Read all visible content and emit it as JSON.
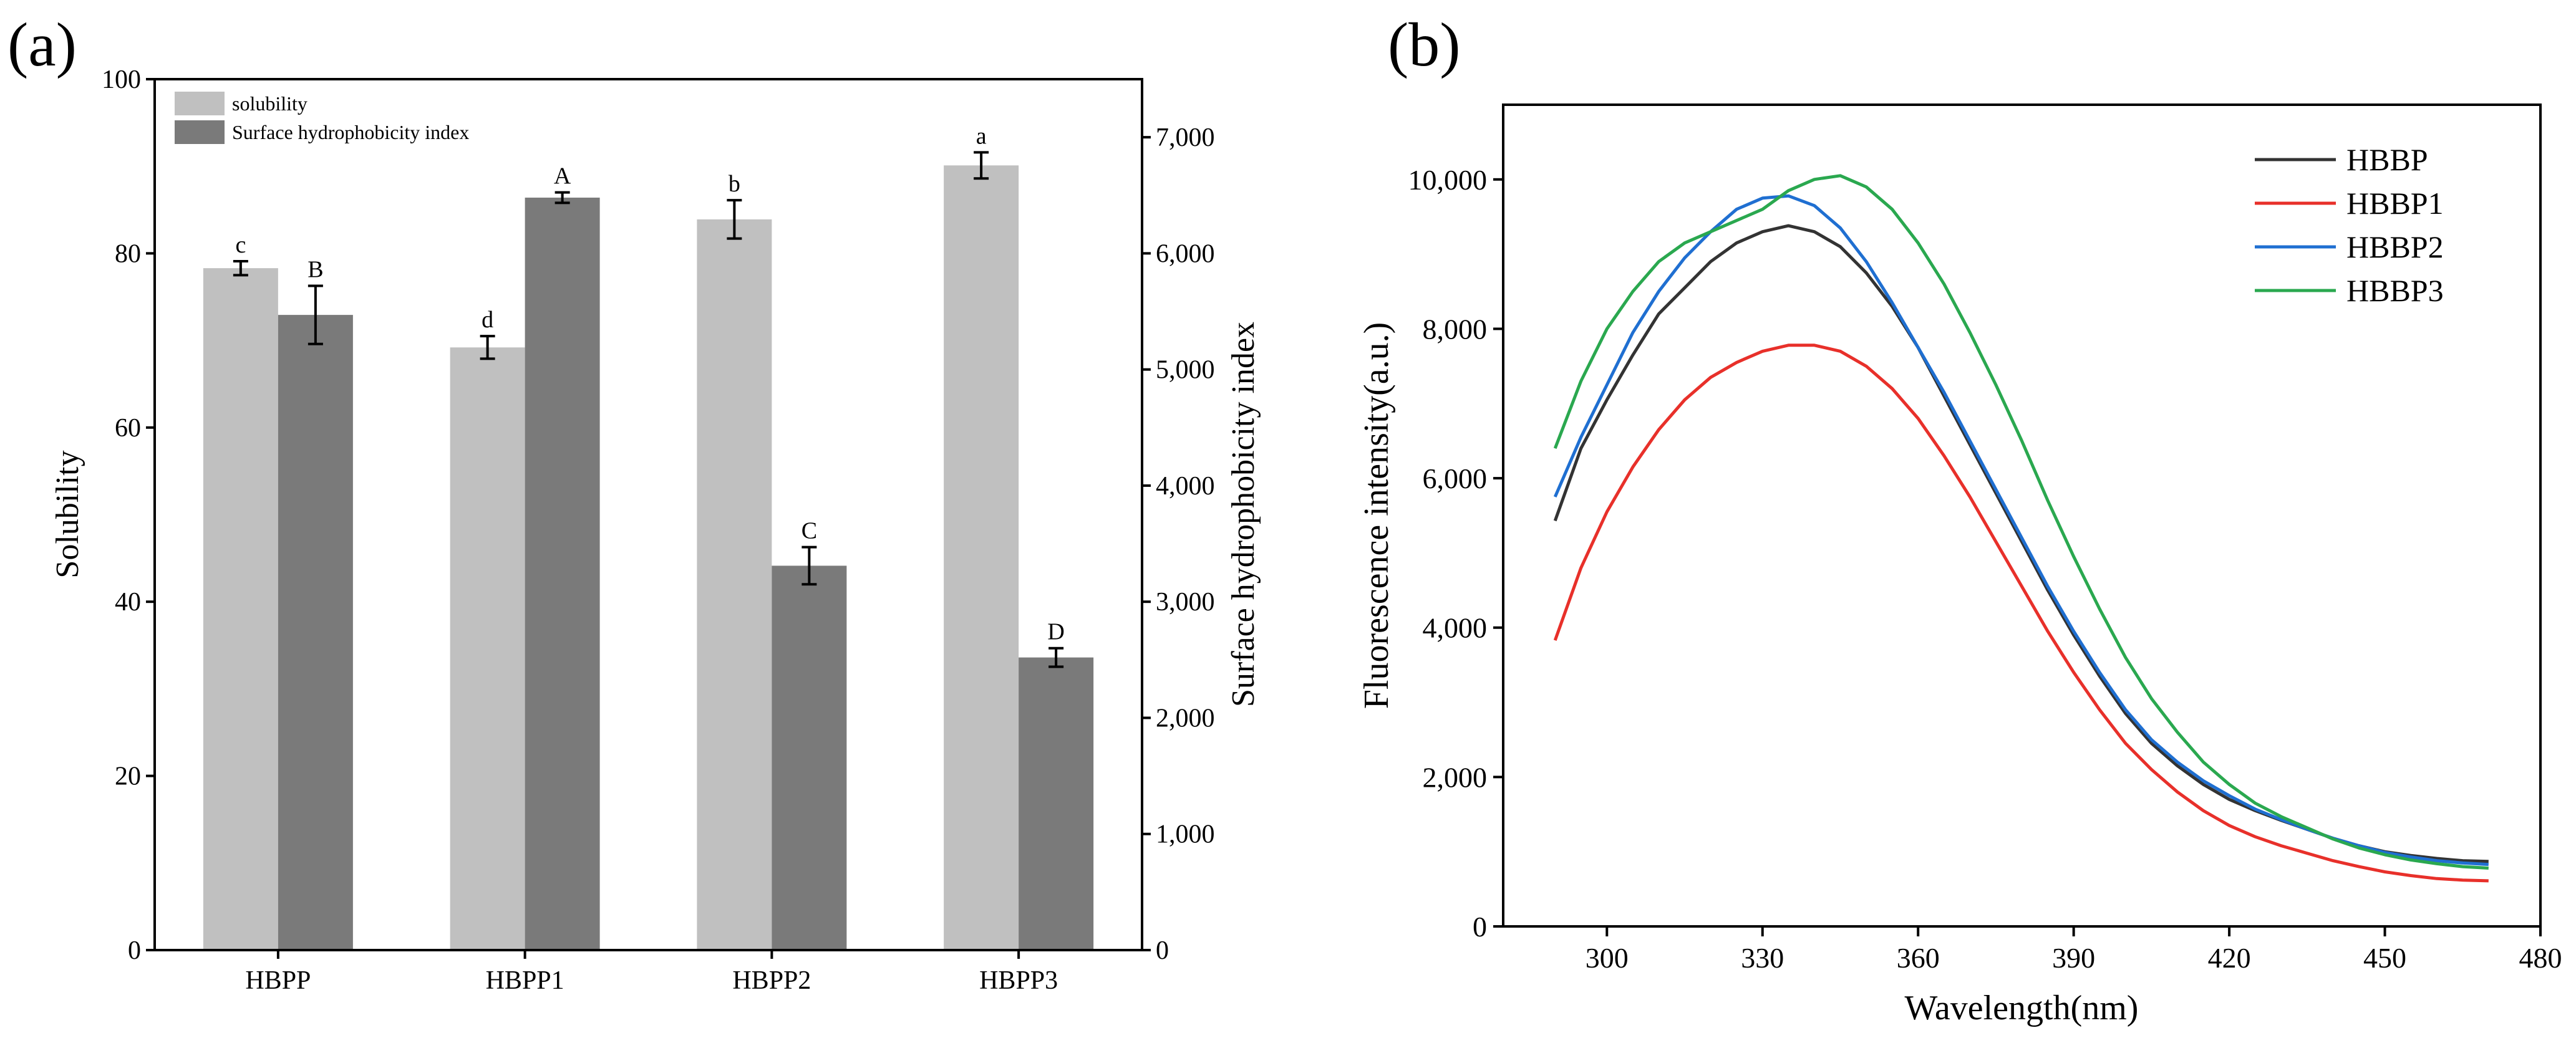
{
  "panels": {
    "a_label": "(a)",
    "b_label": "(b)"
  },
  "colors": {
    "solubility_bar": "#c0c0c0",
    "hydrophobicity_bar": "#7a7a7a",
    "HBBP": "#333333",
    "HBBP1": "#e8302a",
    "HBBP2": "#1f6fd1",
    "HBBP3": "#2aa84f"
  },
  "chart_data": [
    {
      "type": "bar",
      "panel": "(a)",
      "categories": [
        "HBPP",
        "HBPP1",
        "HBPP2",
        "HBPP3"
      ],
      "left_axis": {
        "label": "Solubility",
        "ylim": [
          0,
          100
        ],
        "ticks": [
          "0",
          "20",
          "40",
          "60",
          "80",
          "100"
        ]
      },
      "right_axis": {
        "label": "Surface hydrophobicity index",
        "ylim": [
          0,
          7500
        ],
        "ticks": [
          "0",
          "1,000",
          "2,000",
          "3,000",
          "4,000",
          "5,000",
          "6,000",
          "7,000"
        ]
      },
      "legend_position": "top-left",
      "series": [
        {
          "name": "solubility",
          "axis": "left",
          "values": [
            78.3,
            69.2,
            83.9,
            90.1
          ],
          "errors": [
            0.8,
            1.3,
            2.2,
            1.5
          ],
          "letters": [
            "c",
            "d",
            "b",
            "a"
          ]
        },
        {
          "name": "Surface hydrophobicity index",
          "axis": "right",
          "values": [
            5470,
            6480,
            3310,
            2520
          ],
          "errors": [
            250,
            45,
            160,
            80
          ],
          "letters": [
            "B",
            "A",
            "C",
            "D"
          ]
        }
      ]
    },
    {
      "type": "line",
      "panel": "(b)",
      "xlabel": "Wavelength(nm)",
      "ylabel": "Fluorescence intensity(a.u.)",
      "xlim": [
        280,
        480
      ],
      "ylim": [
        0,
        11000
      ],
      "xticks": [
        "300",
        "330",
        "360",
        "390",
        "420",
        "450",
        "480"
      ],
      "yticks": [
        "0",
        "2,000",
        "4,000",
        "6,000",
        "8,000",
        "10,000"
      ],
      "legend_position": "top-right",
      "x": [
        290,
        295,
        300,
        305,
        310,
        315,
        320,
        325,
        330,
        335,
        340,
        345,
        350,
        355,
        360,
        365,
        370,
        375,
        380,
        385,
        390,
        395,
        400,
        405,
        410,
        415,
        420,
        425,
        430,
        435,
        440,
        445,
        450,
        455,
        460,
        465,
        470
      ],
      "series": [
        {
          "name": "HBBP",
          "values": [
            5430,
            6400,
            7050,
            7650,
            8200,
            8550,
            8900,
            9150,
            9300,
            9380,
            9300,
            9100,
            8750,
            8300,
            7750,
            7100,
            6450,
            5800,
            5150,
            4500,
            3900,
            3350,
            2850,
            2450,
            2150,
            1900,
            1700,
            1550,
            1420,
            1300,
            1180,
            1080,
            1000,
            950,
            910,
            880,
            870
          ]
        },
        {
          "name": "HBBP1",
          "values": [
            3830,
            4800,
            5550,
            6150,
            6650,
            7050,
            7350,
            7550,
            7700,
            7780,
            7780,
            7700,
            7500,
            7200,
            6800,
            6300,
            5750,
            5150,
            4550,
            3950,
            3400,
            2900,
            2450,
            2100,
            1800,
            1550,
            1350,
            1200,
            1080,
            980,
            880,
            800,
            730,
            680,
            640,
            620,
            610
          ]
        },
        {
          "name": "HBBP2",
          "values": [
            5750,
            6550,
            7250,
            7950,
            8500,
            8950,
            9300,
            9600,
            9750,
            9780,
            9650,
            9350,
            8900,
            8350,
            7750,
            7150,
            6500,
            5850,
            5200,
            4550,
            3950,
            3400,
            2900,
            2500,
            2200,
            1950,
            1750,
            1570,
            1430,
            1300,
            1180,
            1080,
            990,
            930,
            880,
            850,
            830
          ]
        },
        {
          "name": "HBBP3",
          "values": [
            6400,
            7300,
            8000,
            8500,
            8900,
            9150,
            9300,
            9450,
            9600,
            9850,
            10000,
            10050,
            9900,
            9600,
            9150,
            8600,
            7950,
            7250,
            6500,
            5700,
            4950,
            4250,
            3600,
            3050,
            2600,
            2200,
            1900,
            1650,
            1470,
            1320,
            1170,
            1050,
            960,
            890,
            840,
            800,
            780
          ]
        }
      ]
    }
  ]
}
